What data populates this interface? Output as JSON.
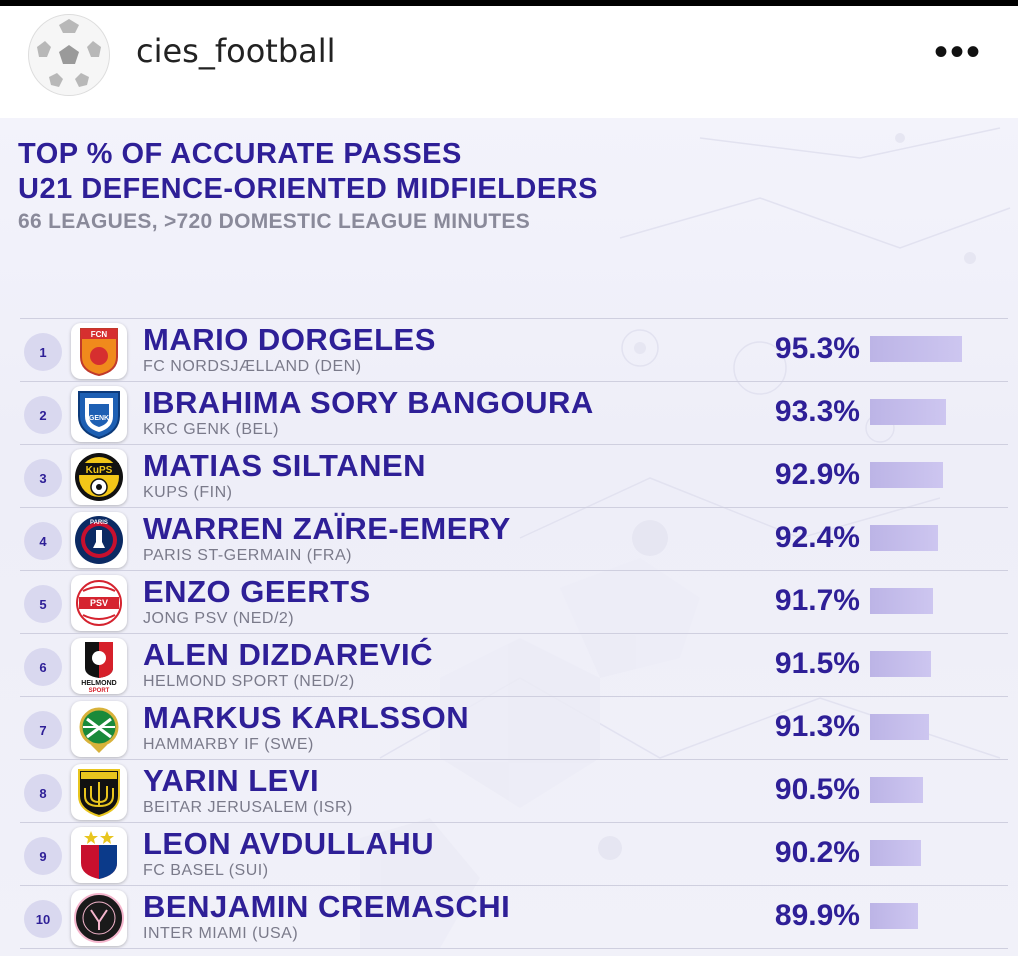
{
  "account": {
    "username": "cies_football",
    "avatar_icon": "football-icon",
    "more_icon": "more-dots-icon",
    "more_label": "•••"
  },
  "infographic": {
    "title_line1": "TOP % OF ACCURATE PASSES",
    "title_line2": "U21 DEFENCE-ORIENTED MIDFIELDERS",
    "subtitle": "66 LEAGUES, >720 DOMESTIC LEAGUE MINUTES",
    "colors": {
      "primary": "#2e1f97",
      "bar": "#c4bdeb",
      "rank_bg": "#d9d8ef"
    }
  },
  "players": [
    {
      "rank": "1",
      "name": "MARIO DORGELES",
      "club": "FC NORDSJÆLLAND (DEN)",
      "value_label": "95.3%",
      "value": 95.3,
      "badge_icon": "fc-nordsjaelland-crest-icon"
    },
    {
      "rank": "2",
      "name": "IBRAHIMA SORY BANGOURA",
      "club": "KRC GENK (BEL)",
      "value_label": "93.3%",
      "value": 93.3,
      "badge_icon": "krc-genk-crest-icon"
    },
    {
      "rank": "3",
      "name": "MATIAS SILTANEN",
      "club": "KUPS (FIN)",
      "value_label": "92.9%",
      "value": 92.9,
      "badge_icon": "kups-crest-icon"
    },
    {
      "rank": "4",
      "name": "WARREN ZAÏRE-EMERY",
      "club": "PARIS ST-GERMAIN (FRA)",
      "value_label": "92.4%",
      "value": 92.4,
      "badge_icon": "psg-crest-icon"
    },
    {
      "rank": "5",
      "name": "ENZO GEERTS",
      "club": "JONG PSV (NED/2)",
      "value_label": "91.7%",
      "value": 91.7,
      "badge_icon": "psv-crest-icon"
    },
    {
      "rank": "6",
      "name": "ALEN DIZDAREVIĆ",
      "club": "HELMOND SPORT (NED/2)",
      "value_label": "91.5%",
      "value": 91.5,
      "badge_icon": "helmond-sport-crest-icon"
    },
    {
      "rank": "7",
      "name": "MARKUS KARLSSON",
      "club": "HAMMARBY IF (SWE)",
      "value_label": "91.3%",
      "value": 91.3,
      "badge_icon": "hammarby-crest-icon"
    },
    {
      "rank": "8",
      "name": "YARIN LEVI",
      "club": "BEITAR JERUSALEM (ISR)",
      "value_label": "90.5%",
      "value": 90.5,
      "badge_icon": "beitar-jerusalem-crest-icon"
    },
    {
      "rank": "9",
      "name": "LEON AVDULLAHU",
      "club": "FC BASEL (SUI)",
      "value_label": "90.2%",
      "value": 90.2,
      "badge_icon": "fc-basel-crest-icon"
    },
    {
      "rank": "10",
      "name": "BENJAMIN CREMASCHI",
      "club": "INTER MIAMI (USA)",
      "value_label": "89.9%",
      "value": 89.9,
      "badge_icon": "inter-miami-crest-icon"
    }
  ],
  "badge_text": {
    "fcn": "FCN",
    "genk": "GENK",
    "kups": "KuPS",
    "paris": "PARIS",
    "psv": "PSV",
    "helmond": "HELMOND",
    "sport": "SPORT"
  }
}
